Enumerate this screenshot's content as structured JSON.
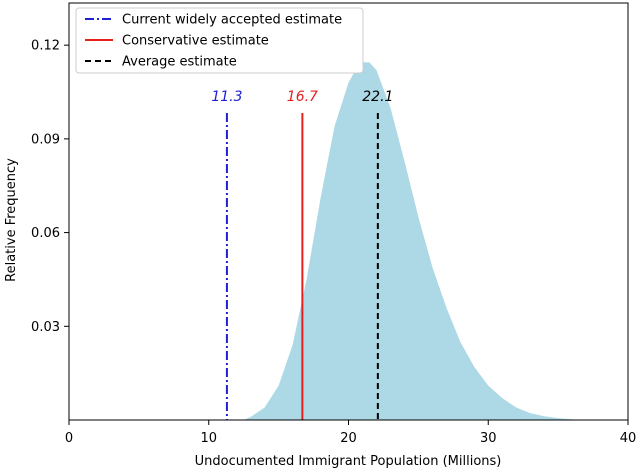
{
  "chart_data": {
    "type": "area",
    "xlabel": "Undocumented Immigrant Population (Millions)",
    "ylabel": "Relative Frequency",
    "xlim": [
      0,
      40
    ],
    "ylim": [
      0,
      0.1335
    ],
    "xticks": [
      0,
      10,
      20,
      30,
      40
    ],
    "yticks": [
      0.03,
      0.06,
      0.09,
      0.12
    ],
    "x_tick_labels": [
      "0",
      "10",
      "20",
      "30",
      "40"
    ],
    "y_tick_labels": [
      "0.03",
      "0.06",
      "0.09",
      "0.12"
    ],
    "grid": false,
    "legend_position": "top-left",
    "distribution": {
      "fill_color": "#add8e6",
      "x": [
        12.5,
        13.0,
        14.0,
        15.0,
        16.0,
        17.0,
        18.0,
        19.0,
        20.0,
        20.5,
        21.0,
        21.5,
        22.0,
        23.0,
        24.0,
        25.0,
        26.0,
        27.0,
        28.0,
        29.0,
        30.0,
        31.0,
        32.0,
        33.0,
        34.0,
        35.0,
        36.0,
        37.5
      ],
      "y": [
        0.0,
        0.001,
        0.004,
        0.011,
        0.024,
        0.045,
        0.071,
        0.094,
        0.108,
        0.112,
        0.1145,
        0.1145,
        0.112,
        0.1,
        0.083,
        0.065,
        0.049,
        0.036,
        0.025,
        0.017,
        0.011,
        0.007,
        0.004,
        0.0022,
        0.0012,
        0.0006,
        0.0002,
        0.0
      ]
    },
    "vlines": [
      {
        "x": 11.3,
        "label": "11.3",
        "color": "#1f1fd6",
        "dash": "dash-dot",
        "legend": "Current widely accepted estimate"
      },
      {
        "x": 16.7,
        "label": "16.7",
        "color": "#e61e1e",
        "dash": "solid",
        "legend": "Conservative estimate"
      },
      {
        "x": 22.1,
        "label": "22.1",
        "color": "#000000",
        "dash": "dashed",
        "legend": "Average estimate"
      }
    ]
  }
}
